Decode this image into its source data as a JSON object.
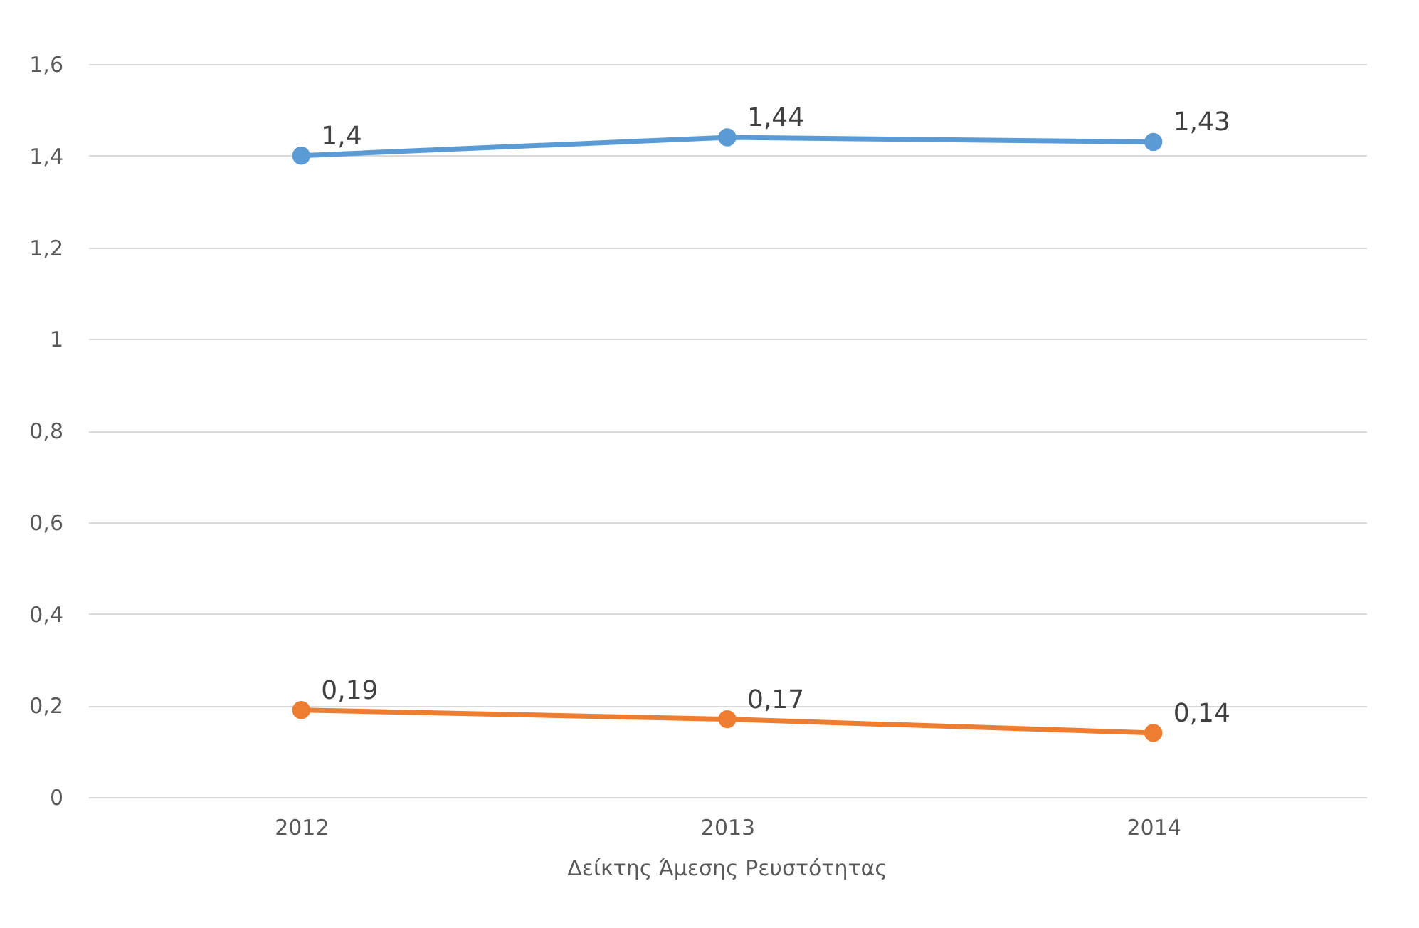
{
  "chart_data": {
    "type": "line",
    "xlabel": "Δείκτης Άμεσης Ρευστότητας",
    "categories": [
      "2012",
      "2013",
      "2014"
    ],
    "series": [
      {
        "color": "#5b9bd5",
        "values": [
          1.4,
          1.44,
          1.43
        ],
        "value_labels": [
          "1,4",
          "1,44",
          "1,43"
        ]
      },
      {
        "color": "#ed7d31",
        "values": [
          0.19,
          0.17,
          0.14
        ],
        "value_labels": [
          "0,19",
          "0,17",
          "0,14"
        ]
      }
    ],
    "ylim": [
      0,
      1.6
    ],
    "yticks": [
      0,
      {
        "value": 0.2,
        "label": "0,2"
      },
      {
        "value": 0.4,
        "label": "0,4"
      },
      {
        "value": 0.6,
        "label": "0,6"
      },
      {
        "value": 0.8,
        "label": "0,8"
      },
      1,
      {
        "value": 1.2,
        "label": "1,2"
      },
      {
        "value": 1.4,
        "label": "1,4"
      },
      {
        "value": 1.6,
        "label": "1,6"
      }
    ],
    "grid": "y",
    "legend": false,
    "marker": "circle",
    "line_style": "solid"
  }
}
